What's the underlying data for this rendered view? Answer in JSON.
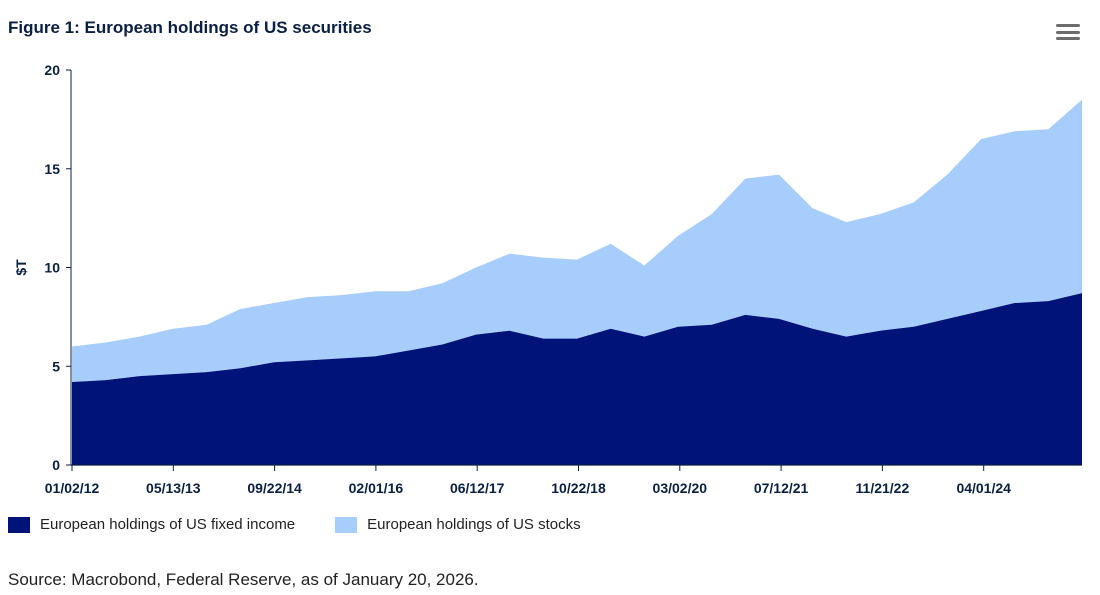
{
  "title": "Figure 1: European holdings of US securities",
  "menu_icon": "hamburger-menu-icon",
  "source": "Source: Macrobond, Federal Reserve, as of January 20, 2026.",
  "colors": {
    "fixed_income": "#001379",
    "stocks": "#a6cdfb",
    "axis": "#0a1f44"
  },
  "chart_data": {
    "type": "area",
    "stacked": true,
    "title": "Figure 1: European holdings of US securities",
    "ylabel": "$T",
    "xlabel": "",
    "ylim": [
      0,
      20
    ],
    "yticks": [
      0,
      5,
      10,
      15,
      20
    ],
    "xticks": [
      "01/02/12",
      "05/13/13",
      "09/22/14",
      "02/01/16",
      "06/12/17",
      "10/22/18",
      "03/02/20",
      "07/12/21",
      "11/21/22",
      "04/01/24"
    ],
    "x": [
      "01/12",
      "07/12",
      "01/13",
      "07/13",
      "01/14",
      "07/14",
      "01/15",
      "07/15",
      "01/16",
      "07/16",
      "01/17",
      "07/17",
      "01/18",
      "07/18",
      "01/19",
      "07/19",
      "01/20",
      "03/20",
      "07/20",
      "01/21",
      "07/21",
      "01/22",
      "07/22",
      "10/22",
      "01/23",
      "07/23",
      "01/24",
      "07/24",
      "01/25",
      "07/25",
      "12/25"
    ],
    "legend": "bottom",
    "series": [
      {
        "name": "European holdings of US fixed income",
        "values": [
          4.2,
          4.3,
          4.5,
          4.6,
          4.7,
          4.9,
          5.2,
          5.3,
          5.4,
          5.5,
          5.8,
          6.1,
          6.6,
          6.8,
          6.4,
          6.4,
          6.9,
          6.5,
          7.0,
          7.1,
          7.6,
          7.4,
          6.9,
          6.5,
          6.8,
          7.0,
          7.4,
          7.8,
          8.2,
          8.3,
          8.7
        ]
      },
      {
        "name": "European holdings of US stocks",
        "values": [
          1.8,
          1.9,
          2.0,
          2.3,
          2.4,
          3.0,
          3.0,
          3.2,
          3.2,
          3.3,
          3.0,
          3.1,
          3.4,
          3.9,
          4.1,
          4.0,
          4.3,
          3.6,
          4.6,
          5.6,
          6.9,
          7.3,
          6.1,
          5.8,
          5.9,
          6.3,
          7.3,
          8.7,
          8.7,
          8.7,
          9.8
        ]
      }
    ]
  }
}
